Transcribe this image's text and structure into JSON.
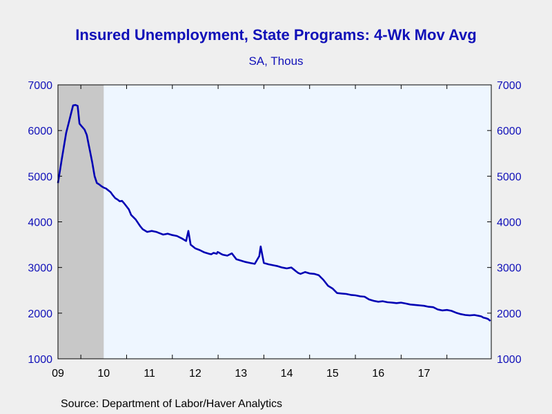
{
  "chart_data": {
    "type": "line",
    "title": "Insured Unemployment, State Programs: 4-Wk Mov Avg",
    "subtitle": "SA, Thous",
    "source": "Source:  Department of Labor/Haver Analytics",
    "ylim": [
      1000,
      7000
    ],
    "y_ticks": [
      1000,
      2000,
      3000,
      4000,
      5000,
      6000,
      7000
    ],
    "x_range": [
      2008.5,
      2017.97
    ],
    "x_tick_labels": [
      "09",
      "10",
      "11",
      "12",
      "13",
      "14",
      "15",
      "16",
      "17"
    ],
    "recession_shading": [
      2008.5,
      2009.5
    ],
    "grid": false,
    "colors": {
      "line": "#0000b4",
      "plot_bg": "#eef6ff",
      "recession": "#c8c8c8",
      "text": "#1010b8"
    },
    "series": [
      {
        "x": [
          2008.5,
          2008.58,
          2008.63,
          2008.68,
          2008.73,
          2008.78,
          2008.83,
          2008.88,
          2008.93,
          2008.97,
          2009.03,
          2009.08,
          2009.13,
          2009.17,
          2009.2,
          2009.25,
          2009.3,
          2009.35,
          2009.4,
          2009.45,
          2009.5,
          2009.55,
          2009.6,
          2009.65,
          2009.7,
          2009.75,
          2009.8,
          2009.85,
          2009.9,
          2009.95,
          2010.05,
          2010.1,
          2010.2,
          2010.3,
          2010.35,
          2010.45,
          2010.55,
          2010.65,
          2010.7,
          2010.75,
          2010.8,
          2010.9,
          2011.0,
          2011.1,
          2011.2,
          2011.3,
          2011.35,
          2011.4,
          2011.5,
          2011.6,
          2011.7,
          2011.8,
          2011.85,
          2011.9,
          2011.97,
          2011.99,
          2012.03,
          2012.06,
          2012.1,
          2012.2,
          2012.3,
          2012.4,
          2012.5,
          2012.6,
          2012.7,
          2012.8,
          2012.9,
          2012.93,
          2012.96,
          2013.0,
          2013.1,
          2013.2,
          2013.3,
          2013.4,
          2013.5,
          2013.6,
          2013.65,
          2013.7,
          2013.75,
          2013.8,
          2013.9,
          2014.0,
          2014.1,
          2014.2,
          2014.3,
          2014.4,
          2014.5,
          2014.6,
          2014.7,
          2014.8,
          2014.9,
          2015.0,
          2015.1,
          2015.2,
          2015.3,
          2015.4,
          2015.5,
          2015.6,
          2015.7,
          2015.8,
          2015.9,
          2016.0,
          2016.1,
          2016.2,
          2016.3,
          2016.4,
          2016.5,
          2016.6,
          2016.7,
          2016.8,
          2016.9,
          2017.0,
          2017.1,
          2017.2,
          2017.3,
          2017.4,
          2017.5,
          2017.6,
          2017.7,
          2017.75,
          2017.8,
          2017.85,
          2017.9,
          2017.95
        ],
        "values": [
          4850,
          5350,
          5650,
          5950,
          6150,
          6350,
          6550,
          6560,
          6540,
          6150,
          6080,
          6020,
          5900,
          5700,
          5550,
          5300,
          5000,
          4850,
          4820,
          4780,
          4750,
          4730,
          4690,
          4650,
          4580,
          4520,
          4490,
          4450,
          4460,
          4400,
          4270,
          4150,
          4050,
          3900,
          3840,
          3780,
          3800,
          3780,
          3760,
          3740,
          3720,
          3740,
          3710,
          3690,
          3640,
          3580,
          3800,
          3500,
          3420,
          3380,
          3330,
          3300,
          3290,
          3320,
          3300,
          3340,
          3320,
          3300,
          3280,
          3260,
          3310,
          3180,
          3150,
          3120,
          3100,
          3080,
          3250,
          3460,
          3300,
          3100,
          3070,
          3050,
          3030,
          3000,
          2980,
          3000,
          2960,
          2920,
          2880,
          2860,
          2900,
          2870,
          2860,
          2830,
          2730,
          2600,
          2540,
          2440,
          2430,
          2420,
          2400,
          2390,
          2370,
          2360,
          2300,
          2270,
          2250,
          2260,
          2240,
          2230,
          2220,
          2230,
          2210,
          2190,
          2180,
          2170,
          2160,
          2140,
          2130,
          2080,
          2060,
          2070,
          2050,
          2010,
          1980,
          1960,
          1950,
          1960,
          1940,
          1930,
          1900,
          1890,
          1870,
          1830
        ]
      }
    ]
  }
}
